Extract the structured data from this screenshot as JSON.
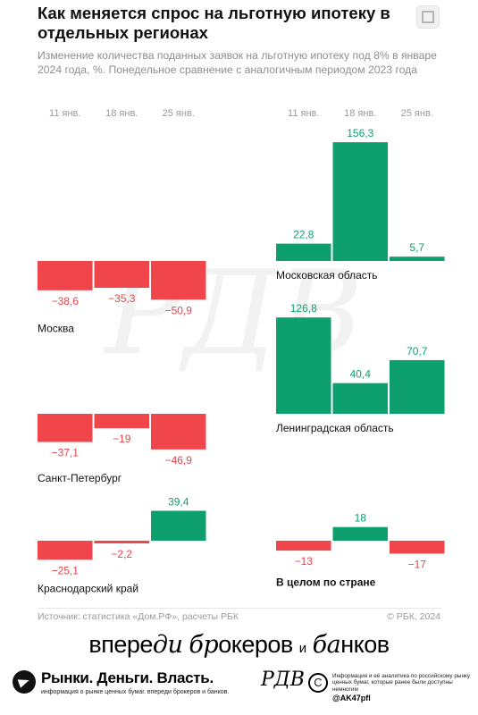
{
  "title": "Как меняется спрос на льготную ипотеку в отдельных регионах",
  "subtitle": "Изменение количества поданных заявок на льготную ипотеку под 8% в январе 2024 года, %. Понедельное сравнение с аналогичным периодом 2023 года",
  "colors": {
    "positive": "#0e9f6e",
    "negative": "#f0454b",
    "pos_label": "#0e9f6e",
    "neg_label": "#e8434a"
  },
  "chart_data": {
    "type": "bar",
    "categories": [
      "11 янв.",
      "18 янв.",
      "25 янв."
    ],
    "panels": [
      {
        "name": "Москва",
        "values": [
          -38.6,
          -35.3,
          -50.9
        ],
        "labels": [
          "−38,6",
          "−35,3",
          "−50,9"
        ]
      },
      {
        "name": "Московская область",
        "values": [
          22.8,
          156.3,
          5.7
        ],
        "labels": [
          "22,8",
          "156,3",
          "5,7"
        ]
      },
      {
        "name": "Санкт-Петербург",
        "values": [
          -37.1,
          -19,
          -46.9
        ],
        "labels": [
          "−37,1",
          "−19",
          "−46,9"
        ]
      },
      {
        "name": "Ленинградская область",
        "values": [
          126.8,
          40.4,
          70.7
        ],
        "labels": [
          "126,8",
          "40,4",
          "70,7"
        ]
      },
      {
        "name": "Краснодарский край",
        "values": [
          -25.1,
          -2.2,
          39.4
        ],
        "labels": [
          "−25,1",
          "−2,2",
          "39,4"
        ]
      },
      {
        "name": "В целом по стране",
        "values": [
          -13,
          18,
          -17
        ],
        "labels": [
          "−13",
          "18",
          "−17"
        ]
      }
    ]
  },
  "footer": {
    "source": "Источник: статистика «Дом.РФ», расчеты РБК",
    "copyright": "© РБК, 2024"
  },
  "banner": {
    "w1": "впере",
    "w1s": "ди",
    "w2s": "бр",
    "w2": "океров",
    "and": "и",
    "w3s": "ба",
    "w3": "нков"
  },
  "brand": {
    "main": "Рынки. Деньги. Власть.",
    "sub": "информация о рынке ценных бумаг. впереди брокеров и банков.",
    "logo": "РДВ",
    "logo_c": "С",
    "info": "Информация и её аналитика по российскому рынку ценных бумаг, которые ранее были доступны немногим",
    "handle": "@AK47pfl"
  },
  "icons": {
    "expand": "expand-icon",
    "telegram": "telegram-icon"
  }
}
